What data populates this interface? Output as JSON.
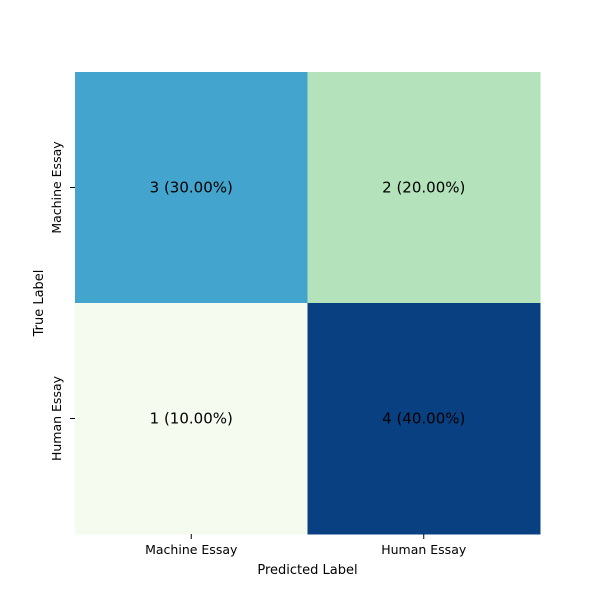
{
  "chart_data": {
    "type": "heatmap",
    "title": "",
    "xlabel": "Predicted Label",
    "ylabel": "True Label",
    "x_categories": [
      "Machine Essay",
      "Human Essay"
    ],
    "y_categories": [
      "Machine Essay",
      "Human Essay"
    ],
    "values": [
      [
        3,
        2
      ],
      [
        1,
        4
      ]
    ],
    "percentages": [
      [
        30.0,
        20.0
      ],
      [
        10.0,
        40.0
      ]
    ],
    "cell_labels": [
      [
        "3 (30.00%)",
        "2 (20.00%)"
      ],
      [
        "1 (10.00%)",
        "4 (40.00%)"
      ]
    ],
    "cell_colors": [
      [
        "#43a5cd",
        "#b4e2ba"
      ],
      [
        "#f6fbf0",
        "#084081"
      ]
    ],
    "text_color": "#000000",
    "colormap": "GnBu",
    "colorbar": false,
    "grid": false
  }
}
